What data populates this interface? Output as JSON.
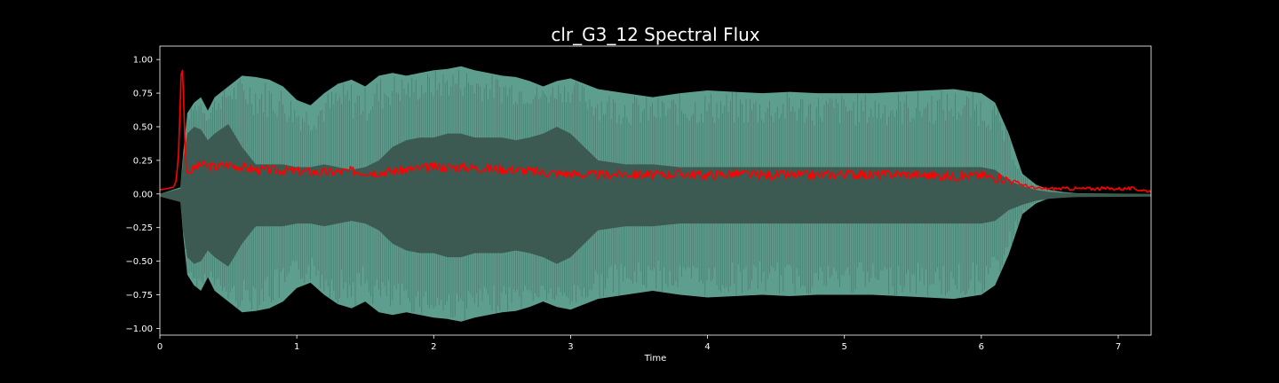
{
  "chart_data": {
    "type": "line",
    "title": "clr_G3_12 Spectral Flux",
    "xlabel": "Time",
    "ylabel": "",
    "xlim": [
      0,
      7.24
    ],
    "ylim": [
      -1.05,
      1.1
    ],
    "x_ticks": [
      0,
      1,
      2,
      3,
      4,
      5,
      6,
      7
    ],
    "x_tick_labels": [
      "0",
      "1",
      "2",
      "3",
      "4",
      "5",
      "6",
      "7"
    ],
    "y_ticks": [
      1.0,
      0.75,
      0.5,
      0.25,
      0.0,
      -0.25,
      -0.5,
      -0.75,
      -1.0
    ],
    "y_tick_labels": [
      "1.00",
      "0.75",
      "0.50",
      "0.25",
      "0.00",
      "−0.25",
      "−0.50",
      "−0.75",
      "−1.00"
    ],
    "grid": false,
    "colors": {
      "background": "#000000",
      "waveform_outer": "#5e9e8f",
      "waveform_inner": "#3c5a51",
      "flux_line": "#ff0000",
      "axes": "#ffffff"
    },
    "series": [
      {
        "kind": "waveform-envelope",
        "x": [
          0,
          0.15,
          0.17,
          0.2,
          0.25,
          0.3,
          0.35,
          0.4,
          0.5,
          0.6,
          0.7,
          0.8,
          0.9,
          1.0,
          1.1,
          1.2,
          1.3,
          1.4,
          1.5,
          1.6,
          1.7,
          1.8,
          1.9,
          2.0,
          2.1,
          2.2,
          2.3,
          2.4,
          2.5,
          2.6,
          2.7,
          2.8,
          2.9,
          3.0,
          3.2,
          3.4,
          3.6,
          3.8,
          4.0,
          4.2,
          4.4,
          4.6,
          4.8,
          5.0,
          5.2,
          5.4,
          5.6,
          5.8,
          6.0,
          6.1,
          6.2,
          6.3,
          6.4,
          6.5,
          6.6,
          6.7,
          7.24
        ],
        "outer": [
          0,
          0.05,
          0.3,
          0.6,
          0.68,
          0.72,
          0.62,
          0.72,
          0.8,
          0.88,
          0.87,
          0.85,
          0.8,
          0.7,
          0.66,
          0.75,
          0.82,
          0.85,
          0.8,
          0.88,
          0.9,
          0.88,
          0.9,
          0.92,
          0.93,
          0.95,
          0.92,
          0.9,
          0.88,
          0.87,
          0.84,
          0.8,
          0.84,
          0.86,
          0.78,
          0.75,
          0.72,
          0.75,
          0.77,
          0.76,
          0.75,
          0.76,
          0.75,
          0.75,
          0.75,
          0.76,
          0.77,
          0.78,
          0.75,
          0.68,
          0.45,
          0.15,
          0.07,
          0.03,
          0.015,
          0.005,
          0
        ],
        "inner": [
          0,
          0.04,
          0.25,
          0.45,
          0.5,
          0.48,
          0.4,
          0.45,
          0.52,
          0.35,
          0.22,
          0.22,
          0.22,
          0.2,
          0.2,
          0.22,
          0.2,
          0.18,
          0.2,
          0.25,
          0.35,
          0.4,
          0.42,
          0.42,
          0.45,
          0.45,
          0.42,
          0.42,
          0.42,
          0.4,
          0.42,
          0.45,
          0.5,
          0.45,
          0.25,
          0.22,
          0.22,
          0.2,
          0.2,
          0.2,
          0.2,
          0.2,
          0.2,
          0.2,
          0.2,
          0.2,
          0.2,
          0.2,
          0.2,
          0.18,
          0.1,
          0.06,
          0.03,
          0.015,
          0.008,
          0.003,
          0
        ]
      },
      {
        "kind": "spectral-flux",
        "x": [
          0,
          0.05,
          0.1,
          0.12,
          0.14,
          0.15,
          0.16,
          0.17,
          0.18,
          0.19,
          0.2,
          0.25,
          0.3,
          0.4,
          0.5,
          0.6,
          0.7,
          0.8,
          1.0,
          1.2,
          1.4,
          1.6,
          1.8,
          2.0,
          2.2,
          2.4,
          2.6,
          2.8,
          3.0,
          3.2,
          3.4,
          3.6,
          3.8,
          4.0,
          4.2,
          4.4,
          4.6,
          4.8,
          5.0,
          5.2,
          5.4,
          5.6,
          5.8,
          6.0,
          6.1,
          6.2,
          6.3,
          6.4,
          6.5,
          6.7,
          6.9,
          7.1,
          7.24
        ],
        "values": [
          0.03,
          0.04,
          0.05,
          0.1,
          0.35,
          0.75,
          1.0,
          0.85,
          0.45,
          0.2,
          0.15,
          0.19,
          0.22,
          0.2,
          0.22,
          0.2,
          0.18,
          0.18,
          0.17,
          0.16,
          0.17,
          0.16,
          0.18,
          0.2,
          0.2,
          0.19,
          0.18,
          0.16,
          0.15,
          0.14,
          0.15,
          0.14,
          0.15,
          0.14,
          0.15,
          0.14,
          0.14,
          0.14,
          0.15,
          0.14,
          0.15,
          0.14,
          0.13,
          0.14,
          0.12,
          0.11,
          0.07,
          0.04,
          0.04,
          0.04,
          0.04,
          0.04,
          0.02
        ]
      }
    ]
  }
}
